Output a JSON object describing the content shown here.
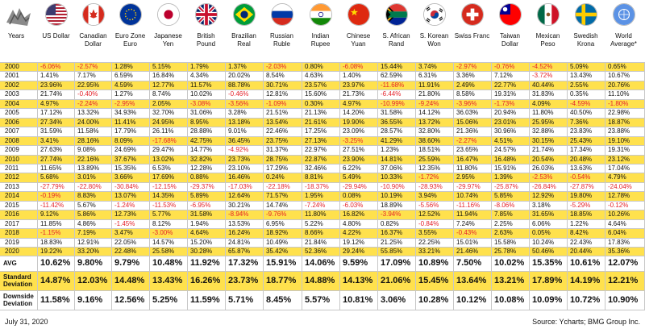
{
  "chart_data": {
    "type": "table",
    "row_header": "Years",
    "columns": [
      "US Dollar",
      "Canadian Dollar",
      "Euro Zone Euro",
      "Japanese Yen",
      "British Pound",
      "Brazilian Real",
      "Russian Ruble",
      "Indian Rupee",
      "Chinese Yuan",
      "S. African Rand",
      "S. Korean Won",
      "Swiss Franc",
      "Taiwan Dollar",
      "Mexican Peso",
      "Swedish Krona",
      "World Average*"
    ],
    "rows": [
      {
        "label": "2000",
        "values": [
          "-6.06%",
          "-2.57%",
          "1.28%",
          "5.15%",
          "1.79%",
          "1.37%",
          "-2.03%",
          "0.80%",
          "-6.08%",
          "15.44%",
          "3.74%",
          "-2.97%",
          "-0.76%",
          "-4.52%",
          "5.09%",
          "0.65%"
        ]
      },
      {
        "label": "2001",
        "values": [
          "1.41%",
          "7.17%",
          "6.59%",
          "16.84%",
          "4.34%",
          "20.02%",
          "8.54%",
          "4.63%",
          "1.40%",
          "62.59%",
          "6.31%",
          "3.36%",
          "7.12%",
          "-3.72%",
          "13.43%",
          "10.67%"
        ]
      },
      {
        "label": "2002",
        "values": [
          "23.96%",
          "22.95%",
          "4.59%",
          "12.77%",
          "11.57%",
          "88.78%",
          "30.71%",
          "23.57%",
          "23.97%",
          "-11.68%",
          "11.91%",
          "2.49%",
          "22.77%",
          "40.44%",
          "2.55%",
          "20.76%"
        ]
      },
      {
        "label": "2003",
        "values": [
          "21.74%",
          "-0.40%",
          "1.27%",
          "8.74%",
          "10.02%",
          "-0.46%",
          "12.81%",
          "15.60%",
          "21.73%",
          "-6.44%",
          "21.80%",
          "8.58%",
          "19.31%",
          "31.83%",
          "0.35%",
          "11.10%"
        ]
      },
      {
        "label": "2004",
        "values": [
          "4.97%",
          "-2.24%",
          "-2.95%",
          "2.05%",
          "-3.08%",
          "-3.56%",
          "-1.09%",
          "0.30%",
          "4.97%",
          "-10.99%",
          "-9.24%",
          "-3.96%",
          "-1.73%",
          "4.09%",
          "-4.59%",
          "-1.80%"
        ]
      },
      {
        "label": "2005",
        "values": [
          "17.12%",
          "13.32%",
          "34.93%",
          "32.70%",
          "31.06%",
          "3.28%",
          "21.51%",
          "21.13%",
          "14.20%",
          "31.58%",
          "14.12%",
          "36.03%",
          "20.94%",
          "11.80%",
          "40.50%",
          "22.98%"
        ]
      },
      {
        "label": "2006",
        "values": [
          "27.34%",
          "24.00%",
          "11.41%",
          "24.95%",
          "8.95%",
          "13.18%",
          "13.54%",
          "21.61%",
          "19.90%",
          "36.55%",
          "13.72%",
          "15.06%",
          "23.01%",
          "25.95%",
          "7.36%",
          "18.87%"
        ]
      },
      {
        "label": "2007",
        "values": [
          "31.59%",
          "11.58%",
          "17.79%",
          "26.11%",
          "28.88%",
          "9.01%",
          "22.46%",
          "17.25%",
          "23.09%",
          "28.57%",
          "32.80%",
          "21.36%",
          "30.96%",
          "32.88%",
          "23.83%",
          "23.88%"
        ]
      },
      {
        "label": "2008",
        "values": [
          "3.41%",
          "28.16%",
          "8.09%",
          "-17.68%",
          "42.75%",
          "36.45%",
          "23.75%",
          "27.13%",
          "-3.25%",
          "41.29%",
          "38.60%",
          "-2.27%",
          "4.51%",
          "30.15%",
          "25.43%",
          "19.10%"
        ]
      },
      {
        "label": "2009",
        "values": [
          "27.63%",
          "9.08%",
          "24.69%",
          "29.47%",
          "14.77%",
          "-4.92%",
          "31.37%",
          "22.97%",
          "27.51%",
          "1.23%",
          "18.51%",
          "23.65%",
          "24.57%",
          "21.74%",
          "17.34%",
          "19.31%"
        ]
      },
      {
        "label": "2010",
        "values": [
          "27.74%",
          "22.16%",
          "37.67%",
          "13.02%",
          "32.82%",
          "23.73%",
          "28.75%",
          "22.87%",
          "23.90%",
          "14.81%",
          "25.59%",
          "16.47%",
          "16.48%",
          "20.54%",
          "20.48%",
          "23.12%"
        ]
      },
      {
        "label": "2011",
        "values": [
          "11.65%",
          "13.89%",
          "15.35%",
          "6.53%",
          "12.28%",
          "23.10%",
          "17.29%",
          "32.46%",
          "6.22%",
          "37.06%",
          "12.35%",
          "11.80%",
          "15.91%",
          "26.03%",
          "13.63%",
          "17.04%"
        ]
      },
      {
        "label": "2012",
        "values": [
          "5.68%",
          "3.01%",
          "3.66%",
          "17.69%",
          "0.88%",
          "16.46%",
          "0.24%",
          "8.81%",
          "5.49%",
          "10.33%",
          "-1.72%",
          "2.95%",
          "1.39%",
          "-2.53%",
          "-0.54%",
          "4.79%"
        ]
      },
      {
        "label": "2013",
        "values": [
          "-27.79%",
          "-22.80%",
          "-30.84%",
          "-12.15%",
          "-29.37%",
          "-17.03%",
          "-22.18%",
          "-18.37%",
          "-29.94%",
          "-10.90%",
          "-28.93%",
          "-29.97%",
          "-25.87%",
          "-26.84%",
          "-27.87%",
          "-24.04%"
        ]
      },
      {
        "label": "2014",
        "values": [
          "-0.19%",
          "8.83%",
          "13.07%",
          "14.35%",
          "5.89%",
          "12.64%",
          "71.57%",
          "1.95%",
          "0.08%",
          "10.19%",
          "3.94%",
          "10.74%",
          "5.85%",
          "12.92%",
          "19.80%",
          "12.78%"
        ]
      },
      {
        "label": "2015",
        "values": [
          "-11.42%",
          "5.67%",
          "-1.24%",
          "-11.53%",
          "-6.95%",
          "30.21%",
          "14.74%",
          "-7.24%",
          "-6.03%",
          "18.89%",
          "-5.56%",
          "-11.16%",
          "-8.06%",
          "3.18%",
          "-5.29%",
          "-0.12%"
        ]
      },
      {
        "label": "2016",
        "values": [
          "9.12%",
          "5.86%",
          "12.73%",
          "5.77%",
          "31.58%",
          "-8.94%",
          "-9.76%",
          "11.80%",
          "16.82%",
          "-3.94%",
          "12.52%",
          "11.94%",
          "7.85%",
          "31.65%",
          "18.85%",
          "10.26%"
        ]
      },
      {
        "label": "2017",
        "values": [
          "11.85%",
          "4.86%",
          "-1.45%",
          "8.12%",
          "1.94%",
          "13.53%",
          "6.95%",
          "5.22%",
          "4.80%",
          "0.82%",
          "-0.84%",
          "7.24%",
          "2.25%",
          "6.06%",
          "1.22%",
          "4.64%"
        ]
      },
      {
        "label": "2018",
        "values": [
          "-1.15%",
          "7.19%",
          "3.47%",
          "-3.00%",
          "4.64%",
          "16.24%",
          "18.92%",
          "8.66%",
          "4.22%",
          "16.37%",
          "3.55%",
          "-0.43%",
          "2.63%",
          "0.05%",
          "8.42%",
          "6.04%"
        ]
      },
      {
        "label": "2019",
        "values": [
          "18.83%",
          "12.91%",
          "22.05%",
          "14.57%",
          "15.20%",
          "24.81%",
          "10.49%",
          "21.84%",
          "19.12%",
          "21.25%",
          "22.25%",
          "15.01%",
          "15.58%",
          "10.24%",
          "22.43%",
          "17.83%"
        ]
      },
      {
        "label": "2020",
        "values": [
          "19.22%",
          "33.20%",
          "22.48%",
          "25.58%",
          "30.28%",
          "65.87%",
          "35.42%",
          "52.36%",
          "29.24%",
          "55.85%",
          "33.21%",
          "21.46%",
          "25.78%",
          "50.46%",
          "20.44%",
          "35.36%"
        ]
      }
    ],
    "summary": [
      {
        "label": "AVG",
        "values": [
          "10.62%",
          "9.80%",
          "9.79%",
          "10.48%",
          "11.92%",
          "17.32%",
          "15.91%",
          "14.06%",
          "9.59%",
          "17.09%",
          "10.89%",
          "7.50%",
          "10.02%",
          "15.35%",
          "10.61%",
          "12.07%"
        ]
      },
      {
        "label": "Standard Deviation",
        "values": [
          "14.87%",
          "12.03%",
          "14.48%",
          "13.43%",
          "16.26%",
          "23.73%",
          "18.77%",
          "14.88%",
          "14.13%",
          "21.06%",
          "15.45%",
          "13.64%",
          "13.21%",
          "17.89%",
          "14.19%",
          "12.21%"
        ]
      },
      {
        "label": "Downside Deviation",
        "values": [
          "11.58%",
          "9.16%",
          "12.56%",
          "5.25%",
          "11.59%",
          "5.71%",
          "8.45%",
          "5.57%",
          "10.81%",
          "3.06%",
          "10.28%",
          "10.12%",
          "10.08%",
          "10.09%",
          "10.72%",
          "10.90%"
        ]
      }
    ]
  },
  "footer": {
    "date": "July 31, 2020",
    "source": "Source: Ycharts; BMG Group Inc."
  },
  "colors": {
    "highlight": "#ffe14d",
    "negative": "#e4222a",
    "grid": "#c7c7c7"
  },
  "flags": [
    "us-flag-icon",
    "canada-flag-icon",
    "eu-flag-icon",
    "japan-flag-icon",
    "uk-flag-icon",
    "brazil-flag-icon",
    "russia-flag-icon",
    "india-flag-icon",
    "china-flag-icon",
    "south-africa-flag-icon",
    "south-korea-flag-icon",
    "switzerland-flag-icon",
    "taiwan-flag-icon",
    "mexico-flag-icon",
    "sweden-flag-icon",
    "un-flag-icon"
  ]
}
